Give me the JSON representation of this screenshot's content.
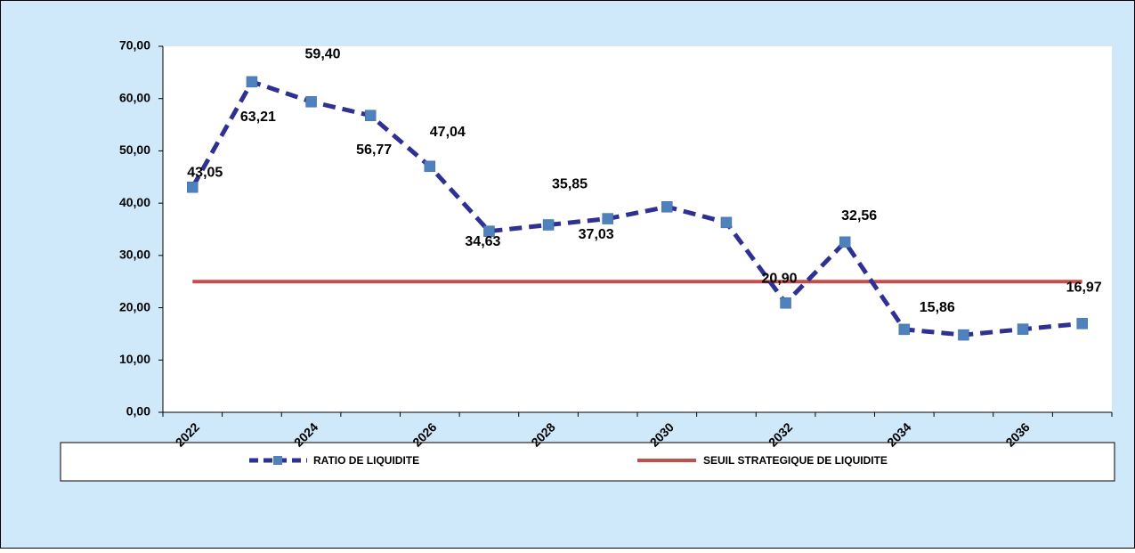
{
  "chart_data": {
    "type": "line",
    "categories": [
      "2022",
      null,
      "2024",
      null,
      "2026",
      null,
      "2028",
      null,
      "2030",
      null,
      "2032",
      null,
      "2034",
      null,
      "2036",
      null
    ],
    "series": [
      {
        "name": "RATIO DE LIQUIDITE",
        "color": "#2e3192",
        "marker_color": "#4f81bd",
        "values": [
          43.05,
          63.21,
          59.4,
          56.77,
          47.04,
          34.63,
          35.85,
          37.03,
          39.3,
          36.3,
          20.9,
          32.56,
          15.86,
          14.8,
          15.9,
          16.97
        ],
        "value_labels": [
          "43,05",
          "63,21",
          "59,40",
          "56,77",
          "47,04",
          "34,63",
          "35,85",
          "37,03",
          null,
          null,
          "20,90",
          "32,56",
          "15,86",
          null,
          null,
          "16,97"
        ]
      },
      {
        "name": "SEUIL STRATEGIQUE DE LIQUIDITE",
        "color": "#c0504d",
        "values": [
          25,
          25,
          25,
          25,
          25,
          25,
          25,
          25,
          25,
          25,
          25,
          25,
          25,
          25,
          25,
          25
        ]
      }
    ],
    "ylim": [
      0,
      70
    ],
    "yticks": [
      {
        "value": 0,
        "label": "0,00"
      },
      {
        "value": 10,
        "label": "10,00"
      },
      {
        "value": 20,
        "label": "20,00"
      },
      {
        "value": 30,
        "label": "30,00"
      },
      {
        "value": 40,
        "label": "40,00"
      },
      {
        "value": 50,
        "label": "50,00"
      },
      {
        "value": 60,
        "label": "60,00"
      },
      {
        "value": 70,
        "label": "70,00"
      }
    ],
    "grid": false
  }
}
